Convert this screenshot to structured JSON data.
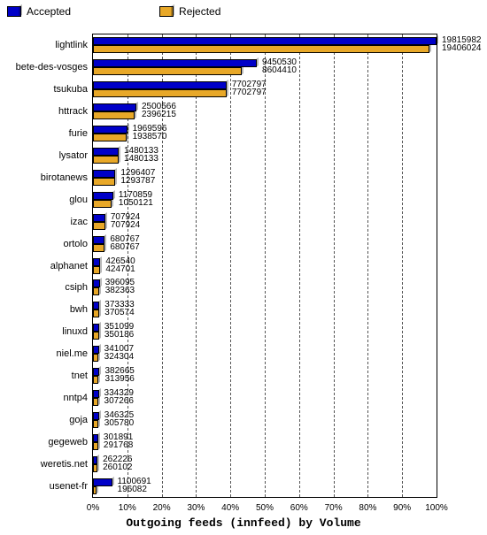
{
  "chart": {
    "type": "bar",
    "x_axis_label": "Outgoing feeds (innfeed) by Volume",
    "x_ticks": [
      0,
      10,
      20,
      30,
      40,
      50,
      60,
      70,
      80,
      90,
      100
    ],
    "x_tick_suffix": "%",
    "legend": [
      {
        "label": "Accepted",
        "color": "#0000c8"
      },
      {
        "label": "Rejected",
        "color": "#e8a828"
      }
    ],
    "colors": {
      "accepted": "#0000c8",
      "rejected": "#e8a828",
      "grid": "#555555",
      "border": "#000000",
      "background": "#ffffff",
      "text": "#000000"
    },
    "max_value": 19815982,
    "font_size_labels": 11,
    "font_size_values": 10,
    "rows": [
      {
        "name": "lightlink",
        "accepted": 19815982,
        "rejected": 19406024
      },
      {
        "name": "bete-des-vosges",
        "accepted": 9450530,
        "rejected": 8604410
      },
      {
        "name": "tsukuba",
        "accepted": 7702797,
        "rejected": 7702797
      },
      {
        "name": "httrack",
        "accepted": 2500566,
        "rejected": 2396215
      },
      {
        "name": "furie",
        "accepted": 1969596,
        "rejected": 1938570
      },
      {
        "name": "lysator",
        "accepted": 1480133,
        "rejected": 1480133
      },
      {
        "name": "birotanews",
        "accepted": 1296407,
        "rejected": 1293787
      },
      {
        "name": "glou",
        "accepted": 1170859,
        "rejected": 1050121
      },
      {
        "name": "izac",
        "accepted": 707924,
        "rejected": 707924
      },
      {
        "name": "ortolo",
        "accepted": 680767,
        "rejected": 680767
      },
      {
        "name": "alphanet",
        "accepted": 426540,
        "rejected": 424701
      },
      {
        "name": "csiph",
        "accepted": 396095,
        "rejected": 382363
      },
      {
        "name": "bwh",
        "accepted": 373333,
        "rejected": 370574
      },
      {
        "name": "linuxd",
        "accepted": 351099,
        "rejected": 350186
      },
      {
        "name": "niel.me",
        "accepted": 341007,
        "rejected": 324304
      },
      {
        "name": "tnet",
        "accepted": 382665,
        "rejected": 313956
      },
      {
        "name": "nntp4",
        "accepted": 334329,
        "rejected": 307266
      },
      {
        "name": "goja",
        "accepted": 346325,
        "rejected": 305780
      },
      {
        "name": "gegeweb",
        "accepted": 301891,
        "rejected": 291768
      },
      {
        "name": "weretis.net",
        "accepted": 262226,
        "rejected": 260102
      },
      {
        "name": "usenet-fr",
        "accepted": 1100691,
        "rejected": 196082
      }
    ]
  }
}
